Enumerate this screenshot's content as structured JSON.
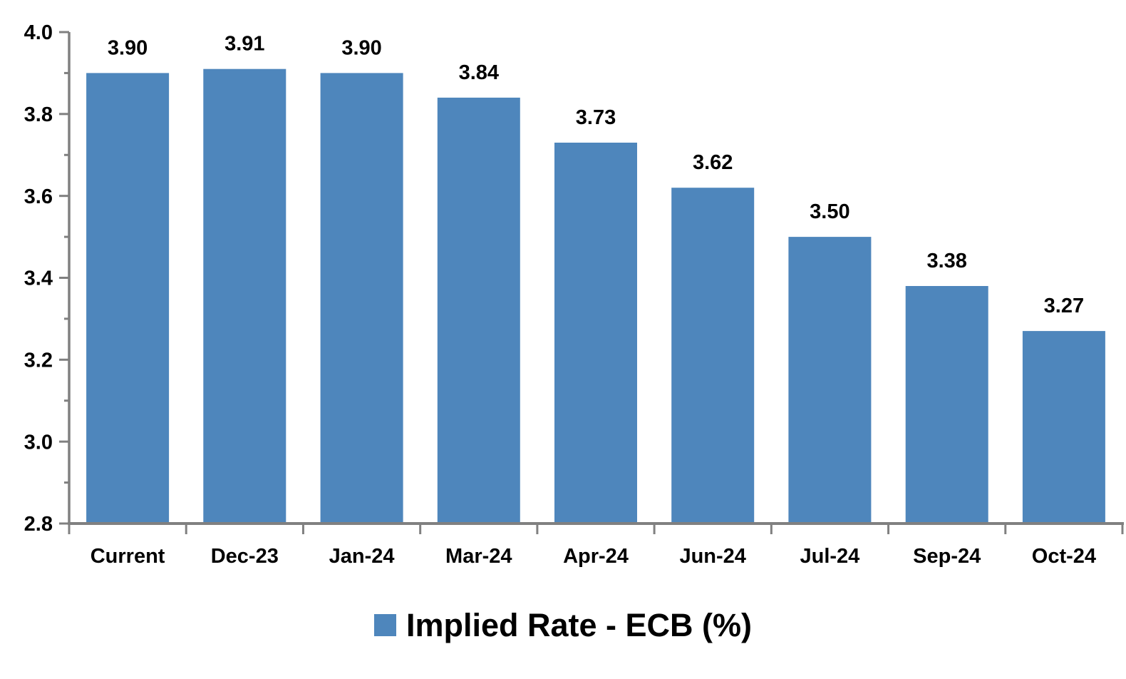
{
  "chart_data": {
    "type": "bar",
    "title": "",
    "categories": [
      "Current",
      "Dec-23",
      "Jan-24",
      "Mar-24",
      "Apr-24",
      "Jun-24",
      "Jul-24",
      "Sep-24",
      "Oct-24"
    ],
    "values": [
      3.9,
      3.91,
      3.9,
      3.84,
      3.73,
      3.62,
      3.5,
      3.38,
      3.27
    ],
    "value_labels": [
      "3.90",
      "3.91",
      "3.90",
      "3.84",
      "3.73",
      "3.62",
      "3.50",
      "3.38",
      "3.27"
    ],
    "legend_label": "Implied Rate - ECB (%)",
    "legend_position": "bottom",
    "ylim": [
      2.8,
      4.0
    ],
    "ytick_labels": [
      "4.0",
      "3.8",
      "3.6",
      "3.4",
      "3.2",
      "3.0",
      "2.8"
    ],
    "ytick_major_step": 0.2,
    "ytick_minor_step": 0.1,
    "grid": "off",
    "bar_color": "#4E86BC",
    "axis_color": "#808080",
    "text_color": "#000000",
    "background_color": "#FFFFFF"
  }
}
